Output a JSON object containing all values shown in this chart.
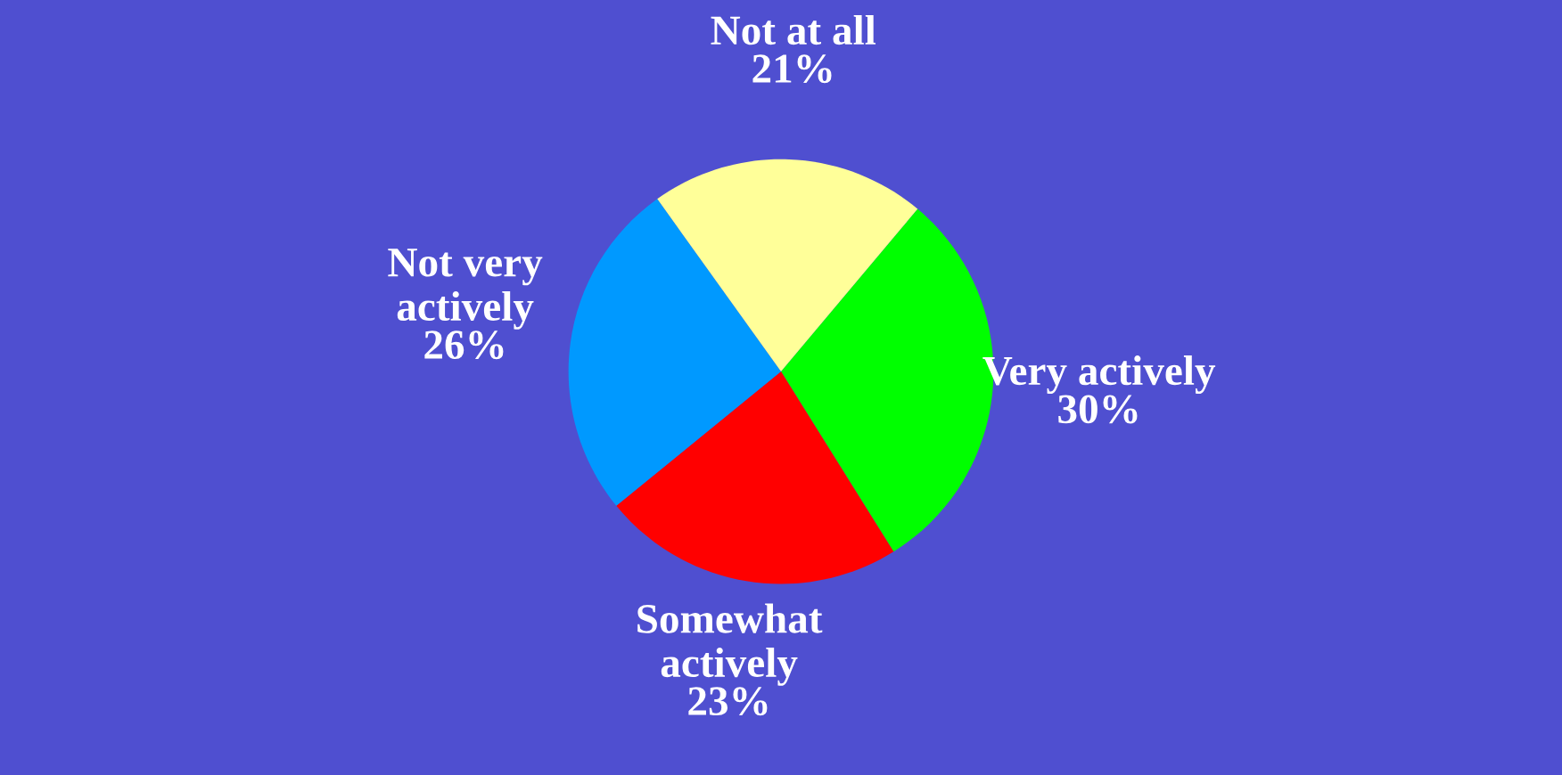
{
  "chart_data": {
    "type": "pie",
    "categories": [
      "Very actively",
      "Somewhat\nactively",
      "Not very\nactively",
      "Not at all"
    ],
    "values": [
      30,
      23,
      26,
      21
    ],
    "value_labels": [
      "30%",
      "23%",
      "26%",
      "21%"
    ],
    "colors": [
      "#00ff00",
      "#ff0000",
      "#0099ff",
      "#ffff99"
    ],
    "legend": false
  }
}
